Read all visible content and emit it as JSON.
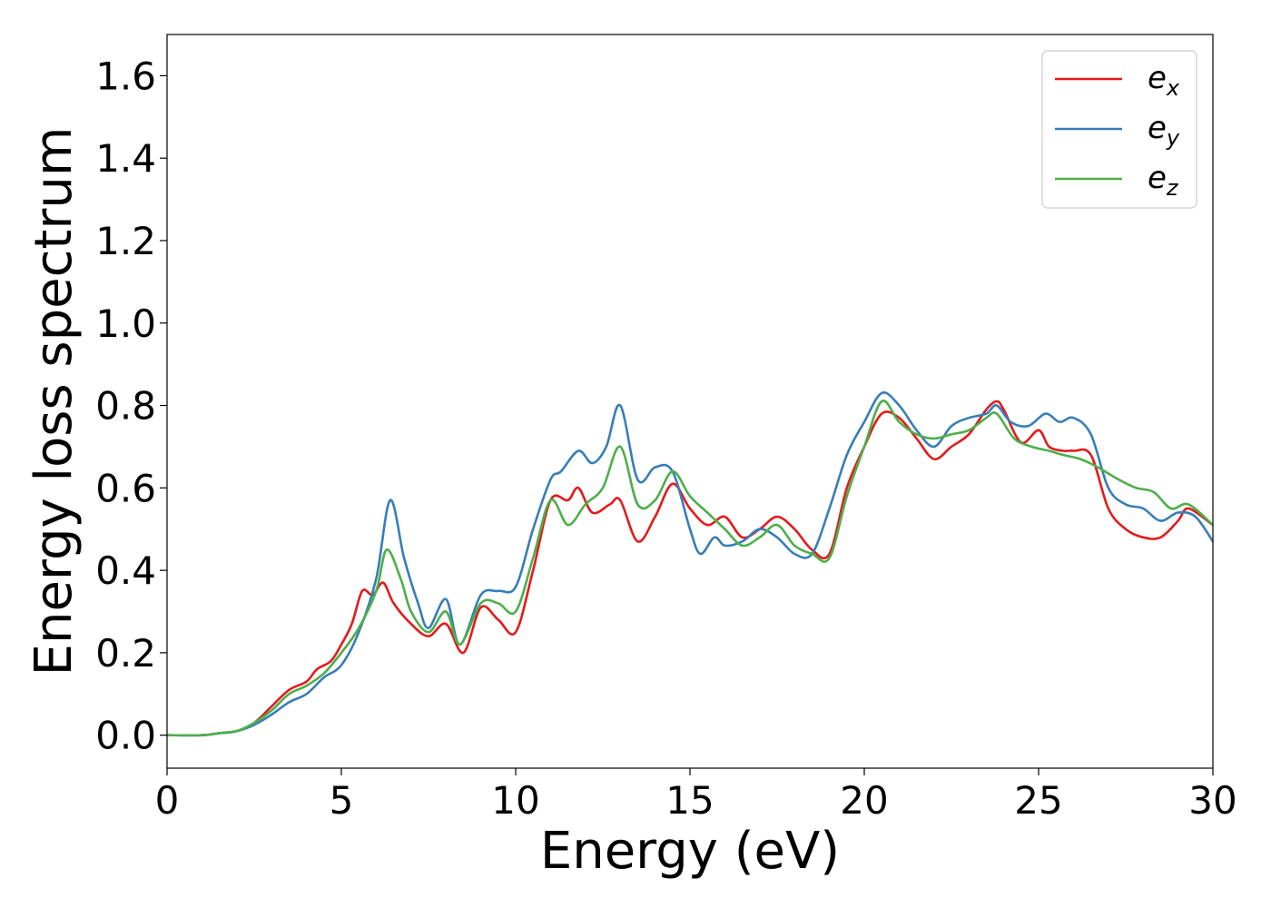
{
  "chart_data": {
    "type": "line",
    "title": "",
    "xlabel": "Energy (eV)",
    "ylabel": "Energy loss spectrum",
    "xlim": [
      0,
      30
    ],
    "ylim": [
      -0.08,
      1.7
    ],
    "xticks": [
      0,
      5,
      10,
      15,
      20,
      25,
      30
    ],
    "xtick_labels": [
      "0",
      "5",
      "10",
      "15",
      "20",
      "25",
      "30"
    ],
    "yticks": [
      0.0,
      0.2,
      0.4,
      0.6,
      0.8,
      1.0,
      1.2,
      1.4,
      1.6
    ],
    "ytick_labels": [
      "0.0",
      "0.2",
      "0.4",
      "0.6",
      "0.8",
      "1.0",
      "1.2",
      "1.4",
      "1.6"
    ],
    "grid": false,
    "legend_position": "top-right",
    "series": [
      {
        "name": "e_x",
        "legend_base": "e",
        "legend_sub": "x",
        "color": "#e41a1c",
        "x": [
          0,
          1,
          1.5,
          2,
          2.5,
          3,
          3.5,
          4,
          4.3,
          4.7,
          5,
          5.3,
          5.6,
          5.9,
          6.2,
          6.5,
          7,
          7.5,
          8,
          8.5,
          9,
          9.5,
          10,
          10.5,
          11,
          11.5,
          11.8,
          12.2,
          12.7,
          13,
          13.5,
          14,
          14.5,
          15,
          15.5,
          16,
          16.5,
          17,
          17.5,
          18,
          18.5,
          19,
          19.5,
          20,
          20.5,
          21,
          21.5,
          22,
          22.5,
          23,
          23.5,
          23.8,
          24,
          24.5,
          25,
          25.3,
          25.7,
          26,
          26.5,
          27,
          27.5,
          28,
          28.5,
          29,
          29.3,
          30
        ],
        "y": [
          0.0,
          0.0,
          0.005,
          0.01,
          0.03,
          0.07,
          0.11,
          0.13,
          0.16,
          0.18,
          0.22,
          0.27,
          0.35,
          0.34,
          0.37,
          0.32,
          0.27,
          0.24,
          0.27,
          0.2,
          0.31,
          0.28,
          0.25,
          0.4,
          0.57,
          0.57,
          0.6,
          0.54,
          0.56,
          0.57,
          0.47,
          0.53,
          0.61,
          0.55,
          0.51,
          0.53,
          0.48,
          0.5,
          0.53,
          0.5,
          0.45,
          0.44,
          0.6,
          0.7,
          0.78,
          0.77,
          0.72,
          0.67,
          0.7,
          0.73,
          0.79,
          0.81,
          0.79,
          0.71,
          0.74,
          0.7,
          0.69,
          0.69,
          0.68,
          0.55,
          0.5,
          0.48,
          0.48,
          0.52,
          0.55,
          0.51
        ]
      },
      {
        "name": "e_y",
        "legend_base": "e",
        "legend_sub": "y",
        "color": "#377eb8",
        "x": [
          0,
          1,
          1.5,
          2,
          2.5,
          3,
          3.5,
          4,
          4.5,
          5,
          5.5,
          6,
          6.4,
          6.8,
          7.2,
          7.5,
          8,
          8.4,
          9,
          9.5,
          10,
          10.5,
          11,
          11.3,
          11.8,
          12.2,
          12.6,
          13,
          13.5,
          14,
          14.5,
          15,
          15.3,
          15.7,
          16,
          16.5,
          17,
          17.5,
          18,
          18.5,
          19,
          19.5,
          20,
          20.5,
          21,
          21.5,
          22,
          22.5,
          23,
          23.5,
          23.8,
          24.2,
          24.7,
          25.2,
          25.6,
          26,
          26.5,
          27,
          27.5,
          28,
          28.5,
          29,
          29.5,
          30
        ],
        "y": [
          0.0,
          0.0,
          0.005,
          0.01,
          0.025,
          0.05,
          0.08,
          0.1,
          0.14,
          0.17,
          0.25,
          0.38,
          0.57,
          0.43,
          0.32,
          0.26,
          0.33,
          0.22,
          0.34,
          0.35,
          0.36,
          0.5,
          0.62,
          0.64,
          0.69,
          0.66,
          0.7,
          0.8,
          0.62,
          0.65,
          0.64,
          0.5,
          0.44,
          0.48,
          0.46,
          0.47,
          0.5,
          0.48,
          0.44,
          0.44,
          0.55,
          0.68,
          0.76,
          0.83,
          0.8,
          0.74,
          0.7,
          0.75,
          0.77,
          0.78,
          0.8,
          0.76,
          0.75,
          0.78,
          0.76,
          0.77,
          0.73,
          0.6,
          0.56,
          0.55,
          0.52,
          0.54,
          0.53,
          0.47
        ]
      },
      {
        "name": "e_z",
        "legend_base": "e",
        "legend_sub": "z",
        "color": "#4daf4a",
        "x": [
          0,
          1,
          1.5,
          2,
          2.5,
          3,
          3.5,
          4,
          4.5,
          5,
          5.5,
          6,
          6.3,
          6.7,
          7,
          7.5,
          8,
          8.4,
          9,
          9.5,
          10,
          10.5,
          11,
          11.5,
          12,
          12.5,
          13,
          13.5,
          14,
          14.5,
          15,
          15.5,
          16,
          16.5,
          17,
          17.5,
          18,
          18.5,
          19,
          19.5,
          20,
          20.5,
          21,
          21.5,
          22,
          22.5,
          23,
          23.5,
          23.8,
          24.3,
          24.8,
          25.3,
          25.7,
          26.2,
          26.7,
          27.3,
          27.8,
          28.3,
          28.8,
          29.3,
          30
        ],
        "y": [
          0.0,
          0.0,
          0.005,
          0.01,
          0.03,
          0.06,
          0.1,
          0.12,
          0.15,
          0.2,
          0.26,
          0.35,
          0.45,
          0.38,
          0.3,
          0.25,
          0.3,
          0.22,
          0.32,
          0.32,
          0.3,
          0.43,
          0.57,
          0.51,
          0.56,
          0.6,
          0.7,
          0.56,
          0.57,
          0.64,
          0.58,
          0.54,
          0.5,
          0.46,
          0.48,
          0.51,
          0.46,
          0.44,
          0.43,
          0.58,
          0.7,
          0.81,
          0.76,
          0.73,
          0.72,
          0.73,
          0.74,
          0.77,
          0.78,
          0.72,
          0.7,
          0.69,
          0.68,
          0.67,
          0.65,
          0.62,
          0.6,
          0.59,
          0.55,
          0.56,
          0.51
        ]
      }
    ]
  }
}
